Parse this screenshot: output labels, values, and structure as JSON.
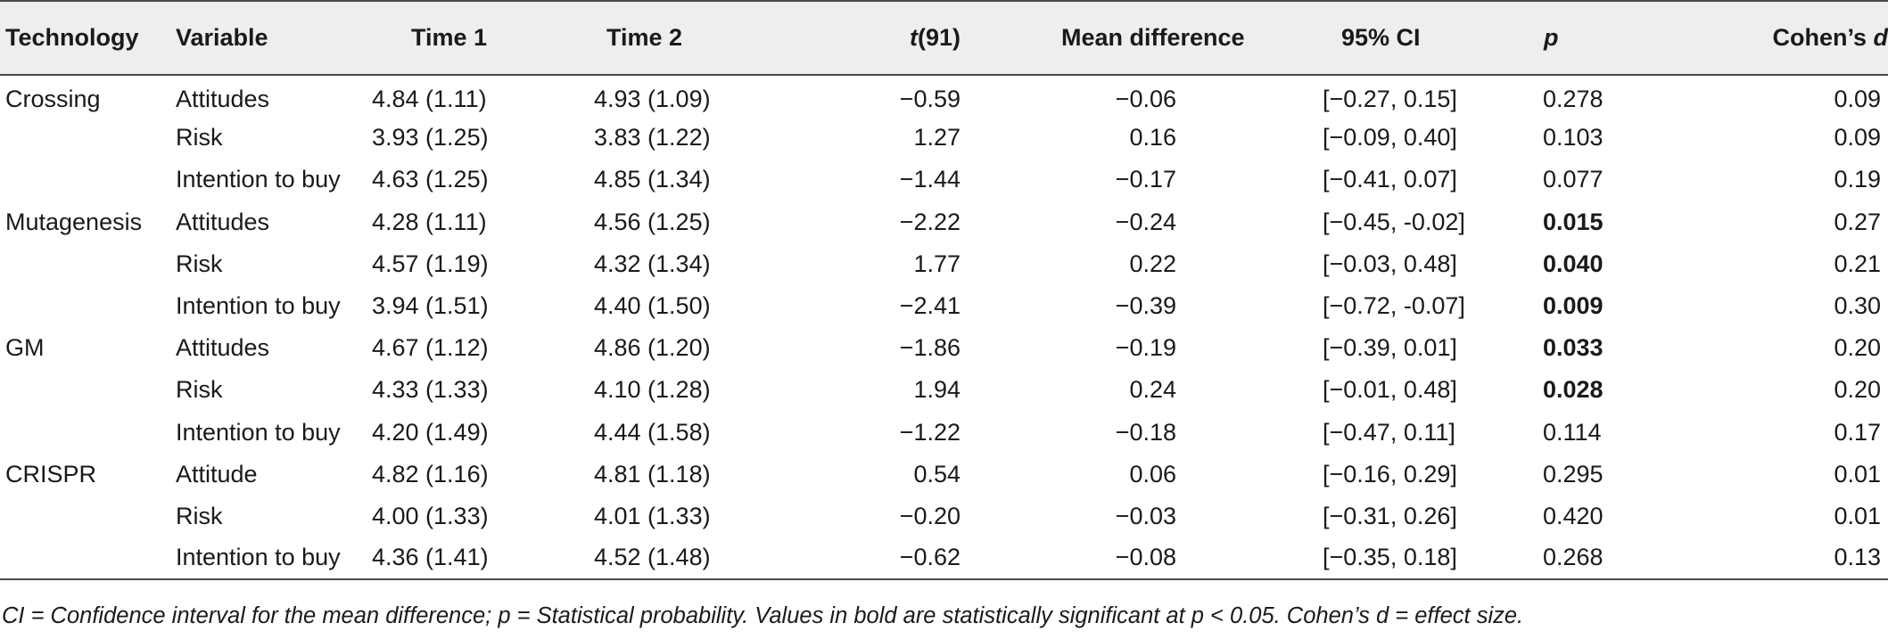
{
  "table": {
    "headers": {
      "technology": "Technology",
      "variable": "Variable",
      "time1": "Time 1",
      "time2": "Time 2",
      "t_label": "t",
      "t_df": "(91)",
      "mean_difference": "Mean difference",
      "ci": "95% CI",
      "p": "p",
      "cohens_prefix": "Cohen’s ",
      "cohens_d": "d"
    },
    "rows": [
      {
        "technology": "Crossing",
        "variable": "Attitudes",
        "time1": "4.84 (1.11)",
        "time2": "4.93 (1.09)",
        "t": "−0.59",
        "mean_difference": "−0.06",
        "ci": "[−0.27, 0.15]",
        "p": "0.278",
        "p_significant": false,
        "d": "0.09"
      },
      {
        "technology": "",
        "variable": "Risk",
        "time1": "3.93 (1.25)",
        "time2": "3.83 (1.22)",
        "t": "1.27",
        "mean_difference": "0.16",
        "ci": "[−0.09, 0.40]",
        "p": "0.103",
        "p_significant": false,
        "d": "0.09"
      },
      {
        "technology": "",
        "variable": "Intention to buy",
        "time1": "4.63 (1.25)",
        "time2": "4.85 (1.34)",
        "t": "−1.44",
        "mean_difference": "−0.17",
        "ci": "[−0.41, 0.07]",
        "p": "0.077",
        "p_significant": false,
        "d": "0.19"
      },
      {
        "technology": "Mutagenesis",
        "variable": "Attitudes",
        "time1": "4.28 (1.11)",
        "time2": "4.56 (1.25)",
        "t": "−2.22",
        "mean_difference": "−0.24",
        "ci": "[−0.45, -0.02]",
        "p": "0.015",
        "p_significant": true,
        "d": "0.27"
      },
      {
        "technology": "",
        "variable": "Risk",
        "time1": "4.57 (1.19)",
        "time2": "4.32 (1.34)",
        "t": "1.77",
        "mean_difference": "0.22",
        "ci": "[−0.03, 0.48]",
        "p": "0.040",
        "p_significant": true,
        "d": "0.21"
      },
      {
        "technology": "",
        "variable": "Intention to buy",
        "time1": "3.94 (1.51)",
        "time2": "4.40 (1.50)",
        "t": "−2.41",
        "mean_difference": "−0.39",
        "ci": "[−0.72, -0.07]",
        "p": "0.009",
        "p_significant": true,
        "d": "0.30"
      },
      {
        "technology": "GM",
        "variable": "Attitudes",
        "time1": "4.67 (1.12)",
        "time2": "4.86 (1.20)",
        "t": "−1.86",
        "mean_difference": "−0.19",
        "ci": "[−0.39, 0.01]",
        "p": "0.033",
        "p_significant": true,
        "d": "0.20"
      },
      {
        "technology": "",
        "variable": "Risk",
        "time1": "4.33 (1.33)",
        "time2": "4.10 (1.28)",
        "t": "1.94",
        "mean_difference": "0.24",
        "ci": "[−0.01, 0.48]",
        "p": "0.028",
        "p_significant": true,
        "d": "0.20"
      },
      {
        "technology": "",
        "variable": "Intention to buy",
        "time1": "4.20 (1.49)",
        "time2": "4.44 (1.58)",
        "t": "−1.22",
        "mean_difference": "−0.18",
        "ci": "[−0.47, 0.11]",
        "p": "0.114",
        "p_significant": false,
        "d": "0.17"
      },
      {
        "technology": "CRISPR",
        "variable": "Attitude",
        "time1": "4.82 (1.16)",
        "time2": "4.81 (1.18)",
        "t": "0.54",
        "mean_difference": "0.06",
        "ci": "[−0.16, 0.29]",
        "p": "0.295",
        "p_significant": false,
        "d": "0.01"
      },
      {
        "technology": "",
        "variable": "Risk",
        "time1": "4.00 (1.33)",
        "time2": "4.01 (1.33)",
        "t": "−0.20",
        "mean_difference": "−0.03",
        "ci": "[−0.31, 0.26]",
        "p": "0.420",
        "p_significant": false,
        "d": "0.01"
      },
      {
        "technology": "",
        "variable": "Intention to buy",
        "time1": "4.36 (1.41)",
        "time2": "4.52 (1.48)",
        "t": "−0.62",
        "mean_difference": "−0.08",
        "ci": "[−0.35, 0.18]",
        "p": "0.268",
        "p_significant": false,
        "d": "0.13"
      }
    ]
  },
  "footnote": "CI = Confidence interval for the mean difference; p = Statistical probability. Values in bold are statistically significant at p < 0.05. Cohen’s d = effect size."
}
